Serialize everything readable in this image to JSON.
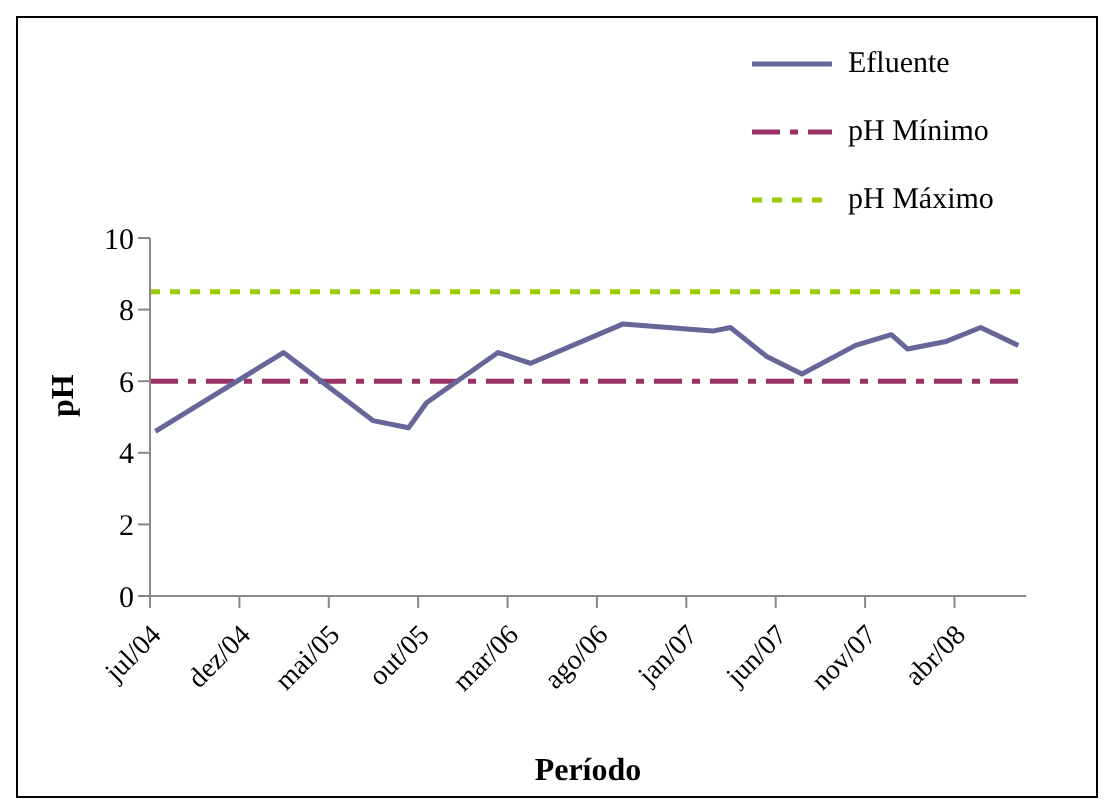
{
  "chart_data": {
    "type": "line",
    "xlabel": "Período",
    "ylabel": "pH",
    "x": [
      "2004-07-10",
      "2005-02-15",
      "2005-07-15",
      "2005-09-15",
      "2005-10-15",
      "2006-02-15",
      "2006-04-10",
      "2006-09-15",
      "2007-02-15",
      "2007-03-15",
      "2007-05-15",
      "2007-07-15",
      "2007-10-15",
      "2007-12-15",
      "2008-01-12",
      "2008-03-15",
      "2008-05-15",
      "2008-07-18"
    ],
    "series": [
      {
        "name": "Efluente",
        "color": "#666699",
        "values": [
          4.6,
          6.8,
          4.9,
          4.7,
          5.4,
          6.8,
          6.5,
          7.6,
          7.4,
          7.5,
          6.7,
          6.2,
          7.0,
          7.3,
          6.9,
          7.1,
          7.5,
          7.0
        ]
      }
    ],
    "xlim": [
      "2004-07",
      "2008-08"
    ],
    "xticks": [
      {
        "value": "2004-07",
        "label": "jul/04"
      },
      {
        "value": "2004-12",
        "label": "dez/04"
      },
      {
        "value": "2005-05",
        "label": "mai/05"
      },
      {
        "value": "2005-10",
        "label": "out/05"
      },
      {
        "value": "2006-03",
        "label": "mar/06"
      },
      {
        "value": "2006-08",
        "label": "ago/06"
      },
      {
        "value": "2007-01",
        "label": "jan/07"
      },
      {
        "value": "2007-06",
        "label": "jun/07"
      },
      {
        "value": "2007-11",
        "label": "nov/07"
      },
      {
        "value": "2008-04",
        "label": "abr/08"
      }
    ],
    "ylim": [
      0,
      10
    ],
    "yticks": [
      0,
      2,
      4,
      6,
      8,
      10
    ],
    "ref_lines": [
      {
        "axis": "y",
        "value": 6,
        "label": "pH Mínimo",
        "color": "#993366",
        "line_style": "dashed"
      },
      {
        "axis": "y",
        "value": 8.5,
        "label": "pH Máximo",
        "color": "#99cc00",
        "line_style": "dotted"
      }
    ],
    "legend": "top right",
    "marker": "none",
    "line_style": "solid",
    "grid": false
  }
}
